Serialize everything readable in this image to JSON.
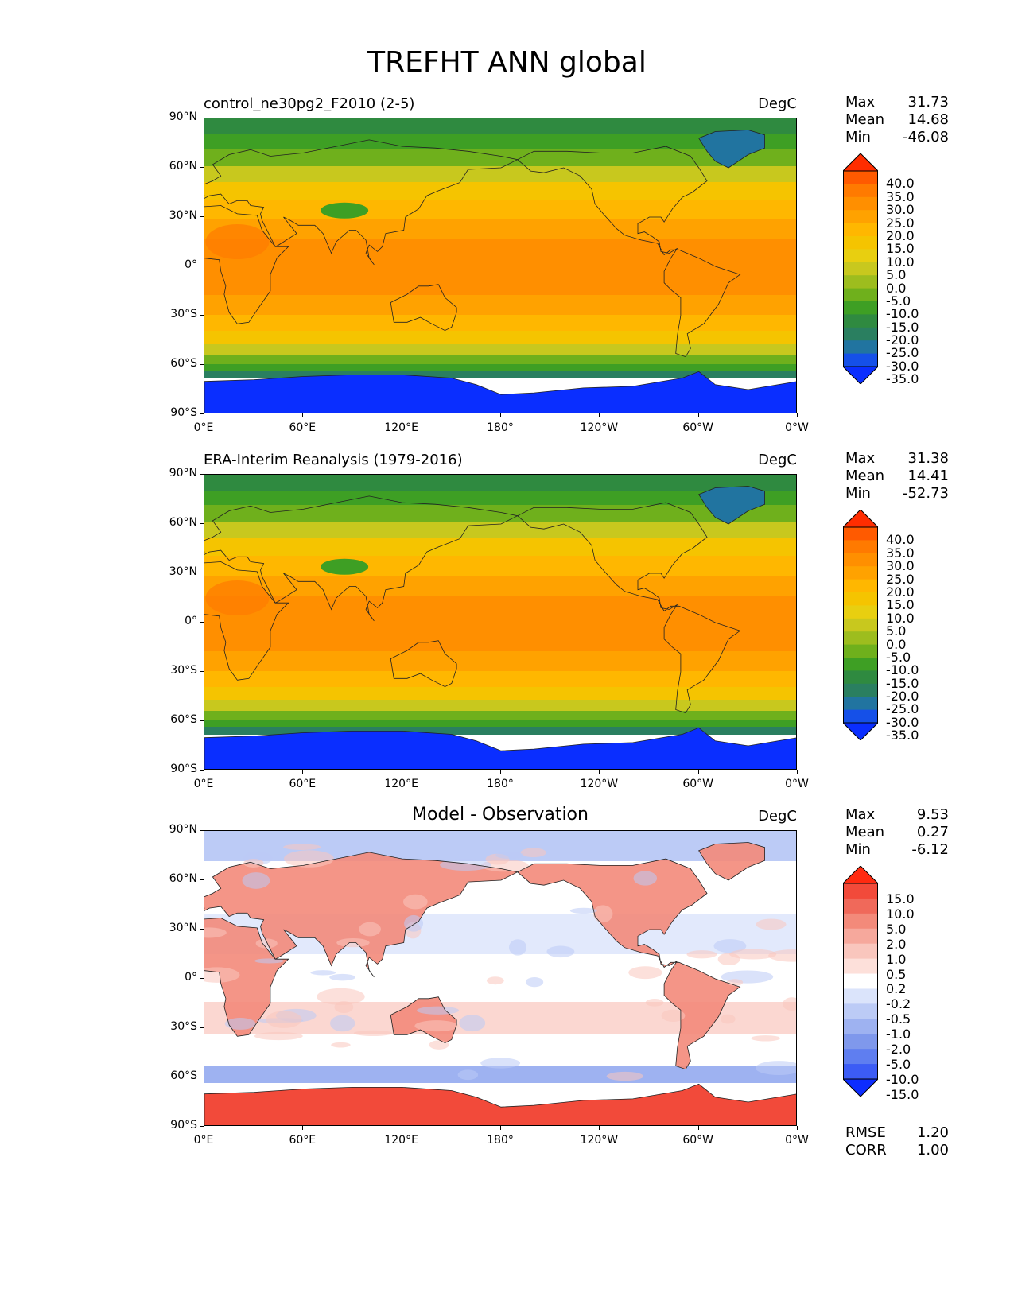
{
  "title": "TREFHT ANN global",
  "axes": {
    "lat_ticks": [
      "90°N",
      "60°N",
      "30°N",
      "0°",
      "30°S",
      "60°S",
      "90°S"
    ],
    "lon_ticks": [
      "0°E",
      "60°E",
      "120°E",
      "180°",
      "120°W",
      "60°W",
      "0°W"
    ]
  },
  "panels": [
    {
      "title": "control_ne30pg2_F2010 (2-5)",
      "units": "DegC",
      "stats": {
        "max_label": "Max",
        "max": "31.73",
        "mean_label": "Mean",
        "mean": "14.68",
        "min_label": "Min",
        "min": "-46.08"
      },
      "colorbar": {
        "levels": [
          "40.0",
          "35.0",
          "30.0",
          "25.0",
          "20.0",
          "15.0",
          "10.0",
          "5.0",
          "0.0",
          "-5.0",
          "-10.0",
          "-15.0",
          "-20.0",
          "-25.0",
          "-30.0",
          "-35.0"
        ],
        "colors": [
          "#ff2d00",
          "#ff5a00",
          "#ff7a00",
          "#ff8f00",
          "#ffa200",
          "#ffb700",
          "#f5c400",
          "#e8cf10",
          "#c8c81e",
          "#9dbd1e",
          "#6fb01c",
          "#3e9f24",
          "#2f8a40",
          "#2a7f60",
          "#2174a0",
          "#1550e8",
          "#0a2eff"
        ]
      }
    },
    {
      "title": "ERA-Interim Reanalysis (1979-2016)",
      "units": "DegC",
      "stats": {
        "max_label": "Max",
        "max": "31.38",
        "mean_label": "Mean",
        "mean": "14.41",
        "min_label": "Min",
        "min": "-52.73"
      },
      "colorbar": {
        "levels": [
          "40.0",
          "35.0",
          "30.0",
          "25.0",
          "20.0",
          "15.0",
          "10.0",
          "5.0",
          "0.0",
          "-5.0",
          "-10.0",
          "-15.0",
          "-20.0",
          "-25.0",
          "-30.0",
          "-35.0"
        ],
        "colors": [
          "#ff2d00",
          "#ff5a00",
          "#ff7a00",
          "#ff8f00",
          "#ffa200",
          "#ffb700",
          "#f5c400",
          "#e8cf10",
          "#c8c81e",
          "#9dbd1e",
          "#6fb01c",
          "#3e9f24",
          "#2f8a40",
          "#2a7f60",
          "#2174a0",
          "#1550e8",
          "#0a2eff"
        ]
      }
    },
    {
      "title": "Model - Observation",
      "units": "DegC",
      "stats": {
        "max_label": "Max",
        "max": "9.53",
        "mean_label": "Mean",
        "mean": "0.27",
        "min_label": "Min",
        "min": "-6.12",
        "rmse_label": "RMSE",
        "rmse": "1.20",
        "corr_label": "CORR",
        "corr": "1.00"
      },
      "colorbar": {
        "levels": [
          "15.0",
          "10.0",
          "5.0",
          "2.0",
          "1.0",
          "0.5",
          "0.2",
          "-0.2",
          "-0.5",
          "-1.0",
          "-2.0",
          "-5.0",
          "-10.0",
          "-15.0"
        ],
        "colors": [
          "#ff2a10",
          "#f24a3a",
          "#f0695a",
          "#f38a7a",
          "#f6a89c",
          "#f9c6bd",
          "#fde0da",
          "#ffffff",
          "#dbe4fb",
          "#bccbf6",
          "#9eb2f1",
          "#7f98ec",
          "#5f7ef0",
          "#3c5cf5",
          "#0d2dff"
        ]
      }
    }
  ]
}
